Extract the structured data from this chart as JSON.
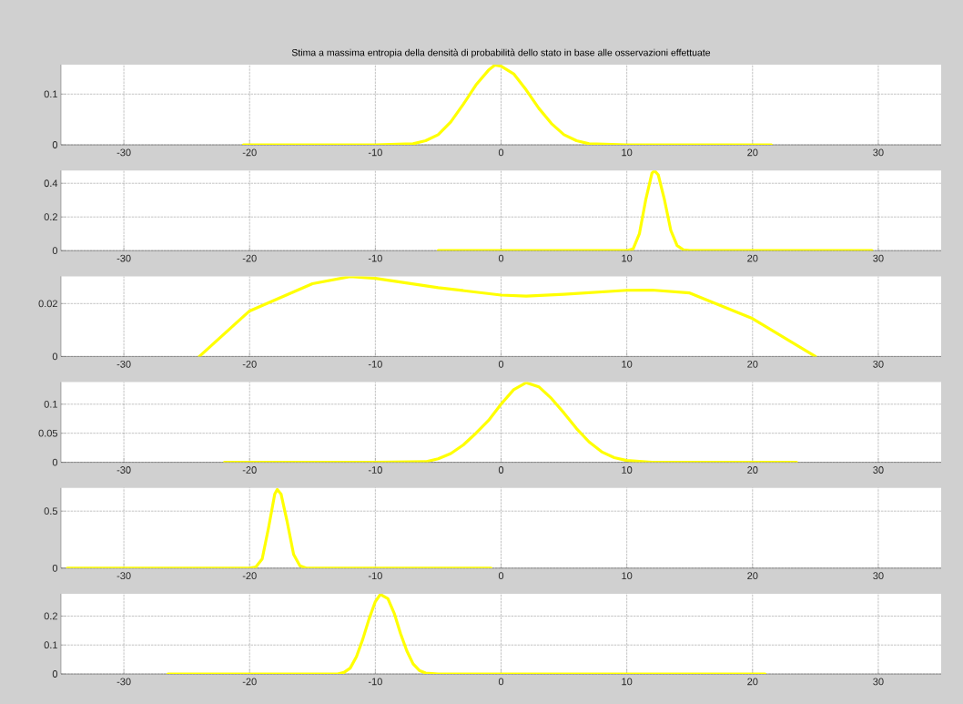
{
  "chart_data": [
    {
      "type": "line",
      "title": "Stima a massima entropia della densità di probabilità dello stato in base alle osservazioni effettuate",
      "xlim": [
        -35,
        35
      ],
      "ylim": [
        0,
        0.158
      ],
      "xticks": [
        -30,
        -20,
        -10,
        0,
        10,
        20,
        30
      ],
      "yticks": [
        0,
        0.1
      ],
      "grid": true,
      "series": [
        {
          "color": "#ffff00",
          "x": [
            -20.5,
            -10,
            -7,
            -6,
            -5,
            -4,
            -3,
            -2,
            -1,
            -0.5,
            0,
            1,
            2,
            3,
            4,
            5,
            6,
            7,
            10,
            21.5
          ],
          "values": [
            0,
            0,
            0.002,
            0.008,
            0.02,
            0.045,
            0.08,
            0.118,
            0.147,
            0.157,
            0.155,
            0.14,
            0.108,
            0.072,
            0.042,
            0.02,
            0.008,
            0.002,
            0,
            0
          ]
        }
      ]
    },
    {
      "type": "line",
      "xlim": [
        -35,
        35
      ],
      "ylim": [
        0,
        0.476
      ],
      "xticks": [
        -30,
        -20,
        -10,
        0,
        10,
        20,
        30
      ],
      "yticks": [
        0,
        0.2,
        0.4
      ],
      "grid": true,
      "series": [
        {
          "color": "#ffff00",
          "x": [
            -5,
            10,
            10.5,
            11,
            11.5,
            12,
            12.2,
            12.5,
            13,
            13.5,
            14,
            14.5,
            15,
            29.5
          ],
          "values": [
            0,
            0,
            0.01,
            0.1,
            0.3,
            0.46,
            0.475,
            0.45,
            0.3,
            0.12,
            0.03,
            0.005,
            0,
            0
          ]
        }
      ]
    },
    {
      "type": "line",
      "xlim": [
        -35,
        35
      ],
      "ylim": [
        0,
        0.0303
      ],
      "xticks": [
        -30,
        -20,
        -10,
        0,
        10,
        20,
        30
      ],
      "yticks": [
        0,
        0.02
      ],
      "grid": true,
      "series": [
        {
          "color": "#ffff00",
          "x": [
            -24,
            -20,
            -15,
            -12,
            -10,
            -5,
            0,
            2,
            5,
            10,
            12,
            15,
            20,
            25
          ],
          "values": [
            0,
            0.0172,
            0.0275,
            0.0302,
            0.0295,
            0.026,
            0.0232,
            0.0228,
            0.0235,
            0.025,
            0.0251,
            0.024,
            0.0143,
            0
          ]
        }
      ]
    },
    {
      "type": "line",
      "xlim": [
        -35,
        35
      ],
      "ylim": [
        0,
        0.138
      ],
      "xticks": [
        -30,
        -20,
        -10,
        0,
        10,
        20,
        30
      ],
      "yticks": [
        0,
        0.05,
        0.1
      ],
      "grid": true,
      "series": [
        {
          "color": "#ffff00",
          "x": [
            -22,
            -10,
            -6,
            -5,
            -4,
            -3,
            -2,
            -1,
            0,
            1,
            2,
            3,
            4,
            5,
            6,
            7,
            8,
            9,
            10,
            12,
            23.5
          ],
          "values": [
            0,
            0,
            0.001,
            0.006,
            0.015,
            0.03,
            0.05,
            0.072,
            0.1,
            0.125,
            0.137,
            0.13,
            0.11,
            0.085,
            0.058,
            0.035,
            0.018,
            0.008,
            0.003,
            0,
            0
          ]
        }
      ]
    },
    {
      "type": "line",
      "xlim": [
        -35,
        35
      ],
      "ylim": [
        0,
        0.703
      ],
      "xticks": [
        -30,
        -20,
        -10,
        0,
        10,
        20,
        30
      ],
      "yticks": [
        0,
        0.5
      ],
      "grid": true,
      "series": [
        {
          "color": "#ffff00",
          "x": [
            -34.5,
            -20,
            -19.5,
            -19,
            -18.5,
            -18,
            -17.8,
            -17.5,
            -17,
            -16.5,
            -16,
            -15.5,
            -0.8
          ],
          "values": [
            0,
            0,
            0.01,
            0.08,
            0.35,
            0.65,
            0.69,
            0.65,
            0.4,
            0.12,
            0.02,
            0,
            0
          ]
        }
      ]
    },
    {
      "type": "line",
      "xlim": [
        -35,
        35
      ],
      "ylim": [
        0,
        0.277
      ],
      "xticks": [
        -30,
        -20,
        -10,
        0,
        10,
        20,
        30
      ],
      "yticks": [
        0,
        0.1,
        0.2
      ],
      "grid": true,
      "series": [
        {
          "color": "#ffff00",
          "x": [
            -26.5,
            -13,
            -12.5,
            -12,
            -11.5,
            -11,
            -10.5,
            -10,
            -9.6,
            -9,
            -8.5,
            -8,
            -7.5,
            -7,
            -6.5,
            -6,
            -5,
            21
          ],
          "values": [
            0,
            0,
            0.005,
            0.02,
            0.06,
            0.12,
            0.19,
            0.25,
            0.275,
            0.26,
            0.21,
            0.14,
            0.08,
            0.035,
            0.012,
            0.003,
            0,
            0
          ]
        }
      ]
    }
  ]
}
